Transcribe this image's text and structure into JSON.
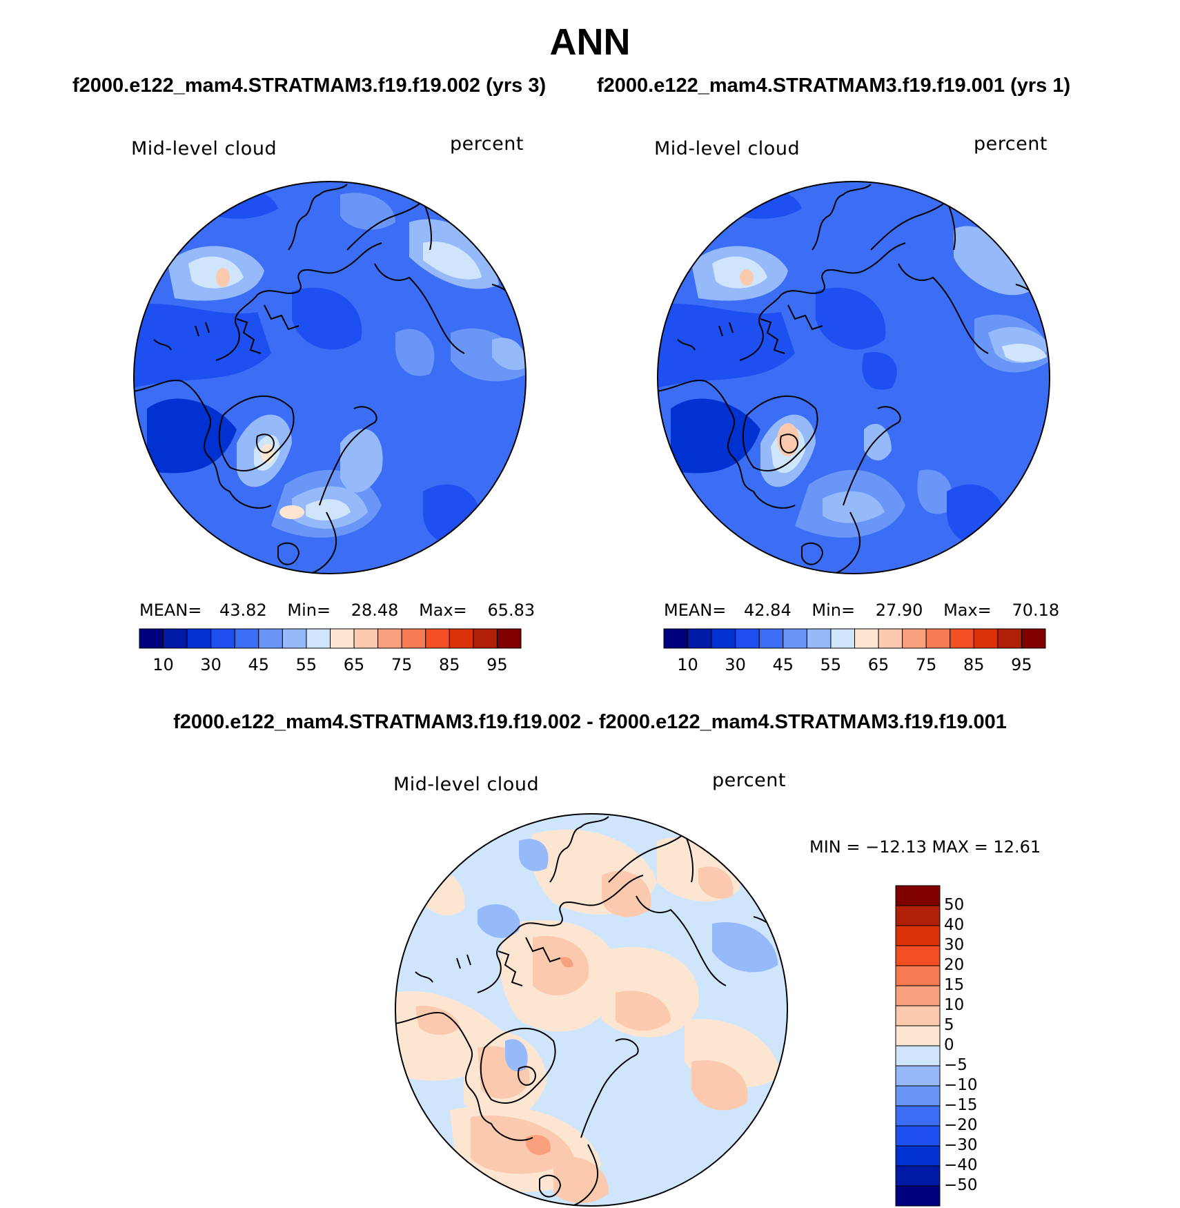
{
  "title": "ANN",
  "case_test": "f2000.e122_mam4.STRATMAM3.f19.f19.002 (yrs 3)",
  "case_control": "f2000.e122_mam4.STRATMAM3.f19.f19.001 (yrs 1)",
  "difference_title": "f2000.e122_mam4.STRATMAM3.f19.f19.002 - f2000.e122_mam4.STRATMAM3.f19.f19.001",
  "panels": [
    {
      "variable": "Mid-level cloud",
      "units": "percent",
      "mean_label": "MEAN=",
      "mean": "43.82",
      "min_label": "Min=",
      "min": "28.48",
      "max_label": "Max=",
      "max": "65.83"
    },
    {
      "variable": "Mid-level cloud",
      "units": "percent",
      "mean_label": "MEAN=",
      "mean": "42.84",
      "min_label": "Min=",
      "min": "27.90",
      "max_label": "Max=",
      "max": "70.18"
    }
  ],
  "diff_panel": {
    "variable": "Mid-level cloud",
    "units": "percent",
    "minmax_text": "MIN = −12.13 MAX =   12.61"
  },
  "colorbar_top": {
    "colors": [
      "#00007e",
      "#0019a6",
      "#0032d2",
      "#1e4ff0",
      "#3c6ef5",
      "#6996f7",
      "#96b9fa",
      "#cfe5fc",
      "#fde6d1",
      "#fbc9ad",
      "#f9a07f",
      "#f77a52",
      "#f44f23",
      "#dc3208",
      "#b11f06",
      "#800000"
    ],
    "tick_labels": [
      "10",
      "30",
      "45",
      "55",
      "65",
      "75",
      "85",
      "95"
    ]
  },
  "colorbar_diff": {
    "colors": [
      "#800000",
      "#b11f06",
      "#dc3208",
      "#f44f23",
      "#f77a52",
      "#f9a07f",
      "#fbc9ad",
      "#fde6d1",
      "#cfe5fc",
      "#96b9fa",
      "#6996f7",
      "#3c6ef5",
      "#1e4ff0",
      "#0032d2",
      "#0019a6",
      "#00007e"
    ],
    "tick_labels": [
      "50",
      "40",
      "30",
      "20",
      "15",
      "10",
      "5",
      "0",
      "−5",
      "−10",
      "−15",
      "−20",
      "−30",
      "−40",
      "−50"
    ]
  },
  "chart_data": [
    {
      "type": "heatmap",
      "projection": "north polar stereographic",
      "title": "Mid-level cloud",
      "units": "percent",
      "case": "f2000.e122_mam4.STRATMAM3.f19.f19.002 (yrs 3)",
      "mean": 43.82,
      "min": 28.48,
      "max": 65.83,
      "contour_levels": [
        10,
        15,
        20,
        30,
        40,
        45,
        50,
        55,
        60,
        65,
        70,
        75,
        80,
        85,
        90,
        95
      ]
    },
    {
      "type": "heatmap",
      "projection": "north polar stereographic",
      "title": "Mid-level cloud",
      "units": "percent",
      "case": "f2000.e122_mam4.STRATMAM3.f19.f19.001 (yrs 1)",
      "mean": 42.84,
      "min": 27.9,
      "max": 70.18,
      "contour_levels": [
        10,
        15,
        20,
        30,
        40,
        45,
        50,
        55,
        60,
        65,
        70,
        75,
        80,
        85,
        90,
        95
      ]
    },
    {
      "type": "heatmap",
      "projection": "north polar stereographic",
      "title": "Mid-level cloud",
      "units": "percent",
      "case": "difference",
      "min": -12.13,
      "max": 12.61,
      "contour_levels": [
        -50,
        -40,
        -30,
        -20,
        -15,
        -10,
        -5,
        0,
        5,
        10,
        15,
        20,
        30,
        40,
        50
      ]
    }
  ]
}
